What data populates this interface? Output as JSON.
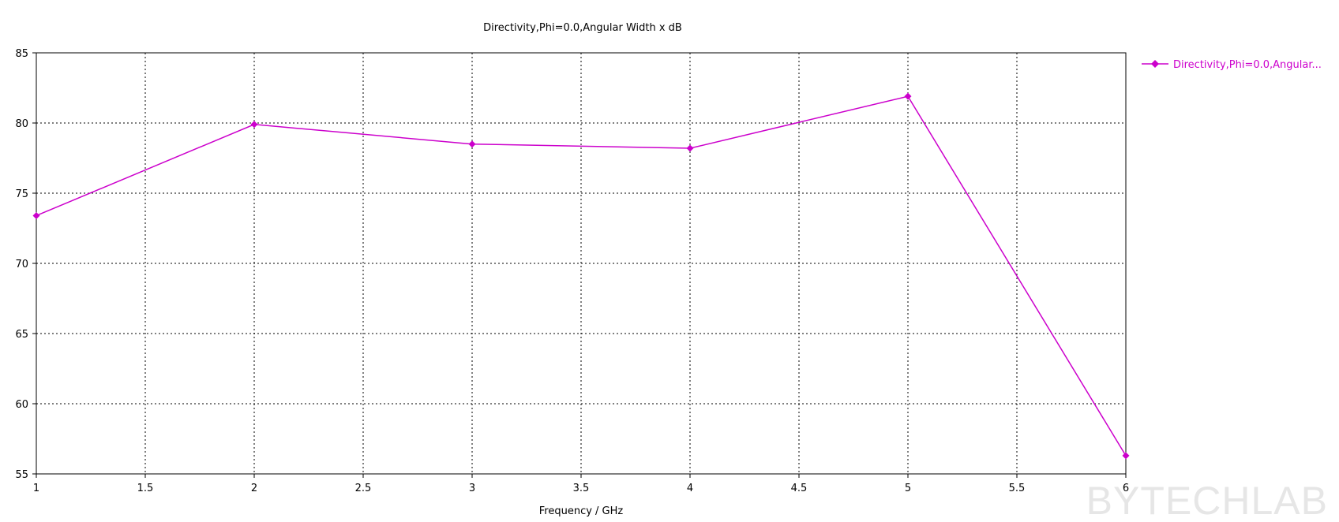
{
  "chart_data": {
    "type": "line",
    "title": "Directivity,Phi=0.0,Angular Width x dB",
    "xlabel": "Frequency / GHz",
    "ylabel": "",
    "xlim": [
      1,
      6
    ],
    "ylim": [
      55,
      85
    ],
    "xticks": [
      "1",
      "1.5",
      "2",
      "2.5",
      "3",
      "3.5",
      "4",
      "4.5",
      "5",
      "5.5",
      "6"
    ],
    "yticks": [
      "55",
      "60",
      "65",
      "70",
      "75",
      "80",
      "85"
    ],
    "grid": true,
    "legend_position": "top-right",
    "series": [
      {
        "name": "Directivity,Phi=0.0,Angular...",
        "color": "#cc00cc",
        "marker": "diamond",
        "x": [
          1,
          2,
          3,
          4,
          5,
          6
        ],
        "y": [
          73.4,
          79.9,
          78.5,
          78.2,
          81.9,
          56.3
        ]
      }
    ]
  },
  "watermark": "BYTECHLAB"
}
